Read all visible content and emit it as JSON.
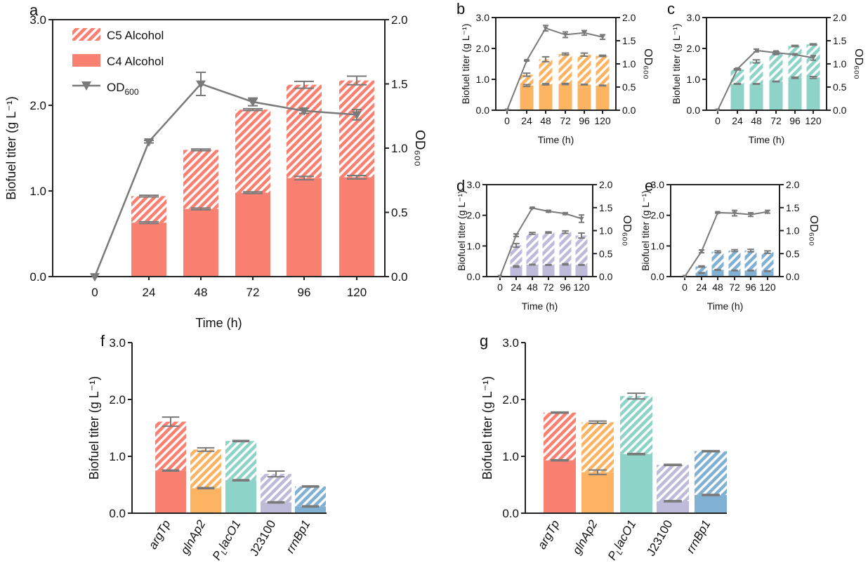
{
  "colors": {
    "c4_a": "#fa8072",
    "c4_b": "#fdb462",
    "c4_c": "#8dd3c7",
    "c4_d": "#bebada",
    "c4_e": "#80b1d3",
    "od_line": "#7a7a7a",
    "axis": "#222222"
  },
  "legend": {
    "c5": "C5 Alcohol",
    "c4": "C4 Alcohol",
    "od": "OD",
    "od_sub": "600"
  },
  "chart_data": [
    {
      "panel": "a",
      "type": "bar+line",
      "xlabel": "Time (h)",
      "ylabel": "Biofuel titer (g L⁻¹)",
      "y2label": "OD₆₀₀",
      "ylim": [
        0,
        3
      ],
      "y2lim": [
        0,
        2
      ],
      "yticks": [
        "0.0",
        "1.0",
        "2.0",
        "3.0"
      ],
      "y2ticks": [
        "0.0",
        "0.5",
        "1.0",
        "1.5",
        "2.0"
      ],
      "x": [
        "0",
        "24",
        "48",
        "72",
        "96",
        "120"
      ],
      "c4": [
        null,
        0.63,
        0.79,
        0.98,
        1.15,
        1.16
      ],
      "total": [
        null,
        0.94,
        1.48,
        1.95,
        2.24,
        2.29
      ],
      "c4_err": [
        0,
        0.01,
        0.01,
        0.01,
        0.02,
        0.02
      ],
      "total_err": [
        0,
        0.01,
        0.01,
        0.01,
        0.04,
        0.05
      ],
      "od": [
        0,
        1.05,
        1.5,
        1.36,
        1.29,
        1.26
      ],
      "od_err": [
        0,
        0.01,
        0.09,
        0.03,
        0.02,
        0.04
      ],
      "color": "#fa8072"
    },
    {
      "panel": "b",
      "type": "bar+line",
      "xlabel": "Time (h)",
      "ylabel": "Biofuel titer (g L⁻¹)",
      "y2label": "OD₆₀₀",
      "ylim": [
        0,
        3
      ],
      "y2lim": [
        0,
        2
      ],
      "yticks": [
        "0.0",
        "1.0",
        "2.0",
        "3.0"
      ],
      "y2ticks": [
        "0.0",
        "0.5",
        "1.0",
        "1.5",
        "2.0"
      ],
      "x": [
        "0",
        "24",
        "48",
        "72",
        "96",
        "120"
      ],
      "c4": [
        null,
        0.8,
        0.84,
        0.85,
        0.83,
        0.8
      ],
      "total": [
        null,
        1.15,
        1.65,
        1.82,
        1.8,
        1.76
      ],
      "c4_err": [
        0,
        0.03,
        0.02,
        0.02,
        0.01,
        0.01
      ],
      "total_err": [
        0,
        0.05,
        0.08,
        0.03,
        0.05,
        0.02
      ],
      "od": [
        0,
        1.07,
        1.77,
        1.63,
        1.67,
        1.58
      ],
      "od_err": [
        0,
        0.01,
        0.06,
        0.06,
        0.05,
        0.05
      ],
      "color": "#fdb462"
    },
    {
      "panel": "c",
      "type": "bar+line",
      "xlabel": "Time (h)",
      "ylabel": "Biofuel titer (g L⁻¹)",
      "y2label": "OD₆₀₀",
      "ylim": [
        0,
        3
      ],
      "y2lim": [
        0,
        2
      ],
      "yticks": [
        "0.0",
        "1.0",
        "2.0",
        "3.0"
      ],
      "y2ticks": [
        "0.0",
        "0.5",
        "1.0",
        "1.5",
        "2.0"
      ],
      "x": [
        "0",
        "24",
        "48",
        "72",
        "96",
        "120"
      ],
      "c4": [
        null,
        0.85,
        0.85,
        0.93,
        1.05,
        1.06
      ],
      "total": [
        null,
        1.32,
        1.58,
        1.85,
        2.08,
        2.13
      ],
      "c4_err": [
        0,
        0.01,
        0.01,
        0.01,
        0.02,
        0.03
      ],
      "total_err": [
        0,
        0.02,
        0.05,
        0.03,
        0.02,
        0.02
      ],
      "od": [
        0,
        0.89,
        1.29,
        1.24,
        1.2,
        1.13
      ],
      "od_err": [
        0,
        0.01,
        0.03,
        0.04,
        0.01,
        0.05
      ],
      "color": "#8dd3c7"
    },
    {
      "panel": "d",
      "type": "bar+line",
      "xlabel": "Time (h)",
      "ylabel": "Biofuel titer (g L⁻¹)",
      "y2label": "OD₆₀₀",
      "ylim": [
        0,
        3
      ],
      "y2lim": [
        0,
        2
      ],
      "yticks": [
        "0.0",
        "1.0",
        "2.0",
        "3.0"
      ],
      "y2ticks": [
        "0.0",
        "0.5",
        "1.0",
        "1.5",
        "2.0"
      ],
      "x": [
        "0",
        "24",
        "48",
        "72",
        "96",
        "120"
      ],
      "c4": [
        null,
        0.33,
        0.39,
        0.38,
        0.4,
        0.38
      ],
      "total": [
        null,
        1.02,
        1.41,
        1.44,
        1.45,
        1.34
      ],
      "c4_err": [
        0,
        0.02,
        0.01,
        0.01,
        0.02,
        0.01
      ],
      "total_err": [
        0,
        0.06,
        0.03,
        0.02,
        0.04,
        0.08
      ],
      "od": [
        0,
        0.9,
        1.49,
        1.42,
        1.37,
        1.26
      ],
      "od_err": [
        0,
        0.03,
        0.01,
        0.02,
        0.02,
        0.08
      ],
      "color": "#bebada"
    },
    {
      "panel": "e",
      "type": "bar+line",
      "xlabel": "Time (h)",
      "ylabel": "Biofuel titer (g L⁻¹)",
      "y2label": "OD₆₀₀",
      "ylim": [
        0,
        3
      ],
      "y2lim": [
        0,
        2
      ],
      "yticks": [
        "0.0",
        "1.0",
        "2.0",
        "3.0"
      ],
      "y2ticks": [
        "0.0",
        "0.5",
        "1.0",
        "1.5",
        "2.0"
      ],
      "x": [
        "0",
        "24",
        "48",
        "72",
        "96",
        "120"
      ],
      "c4": [
        null,
        0.12,
        0.22,
        0.2,
        0.2,
        0.18
      ],
      "total": [
        null,
        0.33,
        0.81,
        0.85,
        0.85,
        0.8
      ],
      "c4_err": [
        0,
        0.01,
        0.01,
        0.01,
        0.01,
        0.01
      ],
      "total_err": [
        0,
        0.02,
        0.03,
        0.03,
        0.04,
        0.04
      ],
      "od": [
        0,
        0.55,
        1.39,
        1.38,
        1.35,
        1.41
      ],
      "od_err": [
        0,
        0.03,
        0.01,
        0.06,
        0.04,
        0.03
      ],
      "color": "#80b1d3"
    },
    {
      "panel": "f",
      "type": "stacked-bar",
      "xlabel": "",
      "ylabel": "Biofuel titer (g L⁻¹)",
      "ylim": [
        0,
        3
      ],
      "yticks": [
        "0.0",
        "1.0",
        "2.0",
        "3.0"
      ],
      "categories": [
        {
          "label": "argTp",
          "italic": true
        },
        {
          "label": "glnAp2",
          "italic": true
        },
        {
          "label": "P",
          "sub": "L",
          "suffix": "lacO1",
          "italic": true
        },
        {
          "label": "J23100",
          "italic": false
        },
        {
          "label": "rrnBp1",
          "italic": true
        }
      ],
      "c4": [
        0.75,
        0.44,
        0.58,
        0.19,
        0.12
      ],
      "total": [
        1.61,
        1.12,
        1.27,
        0.69,
        0.47
      ],
      "c4_err": [
        0.01,
        0.01,
        0.01,
        0.01,
        0.01
      ],
      "total_err": [
        0.08,
        0.03,
        0.01,
        0.05,
        0.01
      ],
      "colors": [
        "#fa8072",
        "#fdb462",
        "#8dd3c7",
        "#bebada",
        "#80b1d3"
      ]
    },
    {
      "panel": "g",
      "type": "stacked-bar",
      "xlabel": "",
      "ylabel": "Biofuel titer (g L⁻¹)",
      "ylim": [
        0,
        3
      ],
      "yticks": [
        "0.0",
        "1.0",
        "2.0",
        "3.0"
      ],
      "categories": [
        {
          "label": "argTp",
          "italic": true
        },
        {
          "label": "glnAp2",
          "italic": true
        },
        {
          "label": "P",
          "sub": "L",
          "suffix": "lacO1",
          "italic": true
        },
        {
          "label": "J23100",
          "italic": false
        },
        {
          "label": "rrnBp1",
          "italic": true
        }
      ],
      "c4": [
        0.93,
        0.72,
        1.04,
        0.21,
        0.32
      ],
      "total": [
        1.77,
        1.6,
        2.06,
        0.85,
        1.09
      ],
      "c4_err": [
        0.01,
        0.04,
        0.01,
        0.01,
        0.01
      ],
      "total_err": [
        0.01,
        0.02,
        0.05,
        0.01,
        0.01
      ],
      "colors": [
        "#fa8072",
        "#fdb462",
        "#8dd3c7",
        "#bebada",
        "#80b1d3"
      ]
    }
  ]
}
